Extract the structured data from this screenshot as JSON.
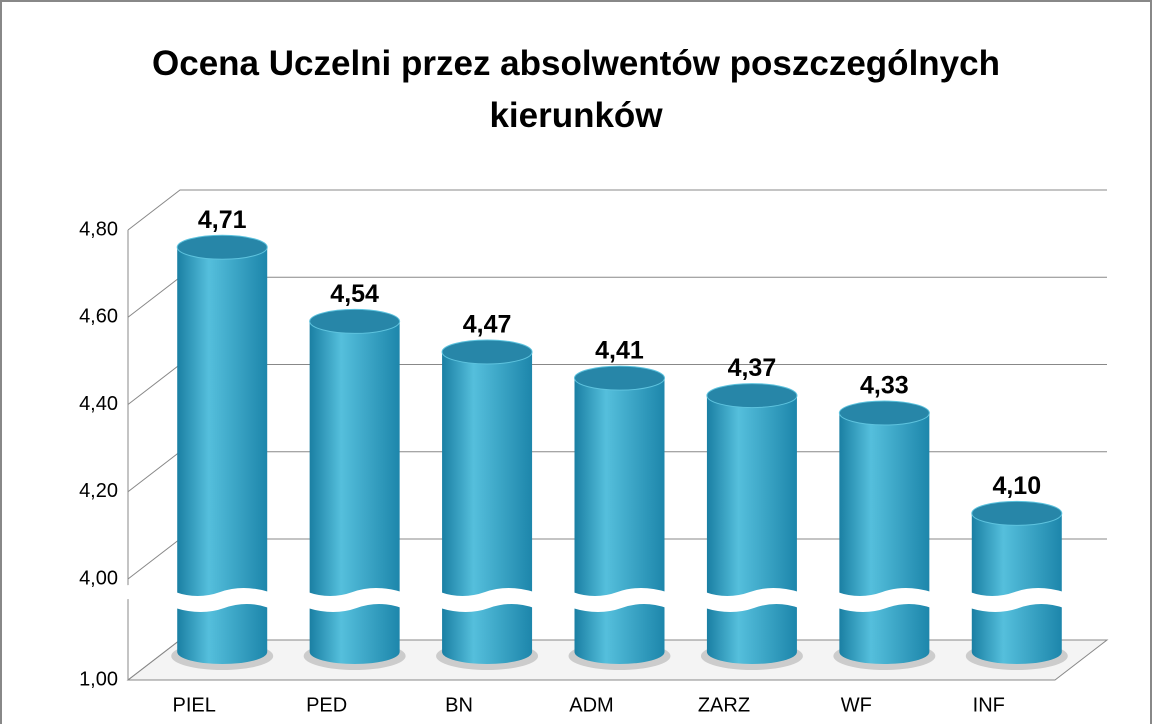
{
  "chart_data": {
    "type": "bar",
    "title": "Ocena Uczelni przez absolwentów poszczególnych kierunków",
    "categories": [
      "PIEL",
      "PED",
      "BN",
      "ADM",
      "ZARZ",
      "WF",
      "INF"
    ],
    "values": [
      4.71,
      4.54,
      4.47,
      4.41,
      4.37,
      4.33,
      4.1
    ],
    "value_labels": [
      "4,71",
      "4,54",
      "4,47",
      "4,41",
      "4,37",
      "4,33",
      "4,10"
    ],
    "color": "#2a9cc0",
    "ylim": [
      1,
      4.8
    ],
    "yticks": [
      {
        "value": 1,
        "label": "1,00"
      },
      {
        "value": 4,
        "label": "4,00"
      },
      {
        "value": 4.2,
        "label": "4,20"
      },
      {
        "value": 4.4,
        "label": "4,40"
      },
      {
        "value": 4.6,
        "label": "4,60"
      },
      {
        "value": 4.8,
        "label": "4,80"
      }
    ],
    "grid": true
  }
}
